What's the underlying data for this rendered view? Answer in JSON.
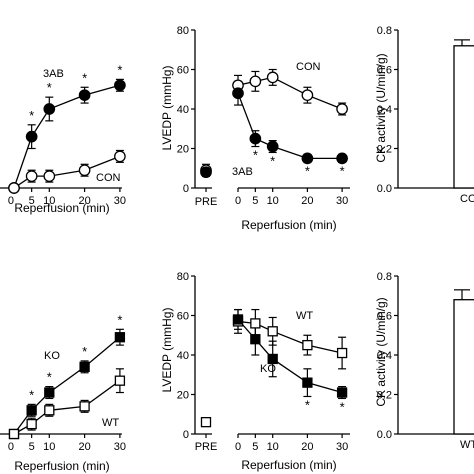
{
  "chart_data": [
    {
      "type": "line",
      "xlabel": "Reperfusion (min)",
      "ylabel": "",
      "x": [
        0,
        5,
        10,
        20,
        30
      ],
      "xticks": [
        "0",
        "5",
        "10",
        "20",
        "30"
      ],
      "ylim": [
        0,
        80
      ],
      "yticks": [],
      "series": [
        {
          "name": "3AB",
          "marker": "filled-circle",
          "values": [
            0,
            26,
            40,
            47,
            52
          ],
          "err": [
            0,
            6,
            6,
            4,
            3
          ]
        },
        {
          "name": "CON",
          "marker": "open-circle",
          "values": [
            0,
            6,
            6,
            9,
            16
          ],
          "err": [
            0,
            3,
            3,
            3,
            3
          ]
        }
      ],
      "significance": {
        "series": "3AB",
        "x": [
          5,
          10,
          20,
          30
        ],
        "mark": "*"
      }
    },
    {
      "type": "line",
      "xlabel": "Reperfusion (min)",
      "ylabel": "LVEDP (mmHg)",
      "x": [
        0,
        5,
        10,
        20,
        30
      ],
      "xticks": [
        "0",
        "5",
        "10",
        "20",
        "30"
      ],
      "pre_label": "PRE",
      "ylim": [
        0,
        80
      ],
      "yticks": [
        "0",
        "20",
        "40",
        "60",
        "80"
      ],
      "series": [
        {
          "name": "CON",
          "marker": "open-circle",
          "pre": 9,
          "pre_err": 3,
          "values": [
            52,
            54,
            56,
            47,
            40
          ],
          "err": [
            5,
            5,
            4,
            4,
            3
          ]
        },
        {
          "name": "3AB",
          "marker": "filled-circle",
          "pre": 8,
          "pre_err": 2,
          "values": [
            48,
            25,
            21,
            15,
            15
          ],
          "err": [
            6,
            4,
            3,
            2,
            2
          ]
        }
      ],
      "significance": {
        "series": "3AB",
        "x": [
          5,
          10,
          20,
          30
        ],
        "mark": "*"
      }
    },
    {
      "type": "bar",
      "xlabel": "",
      "ylabel": "CK activity (U/min/g)",
      "categories": [
        "CON"
      ],
      "values": [
        0.72
      ],
      "err": [
        0.03
      ],
      "ylim": [
        0,
        0.8
      ],
      "yticks": [
        "0.0",
        "0.2",
        "0.4",
        "0.6",
        "0.8"
      ]
    },
    {
      "type": "line",
      "xlabel": "Reperfusion (min)",
      "ylabel": "",
      "x": [
        0,
        5,
        10,
        20,
        30
      ],
      "xticks": [
        "0",
        "5",
        "10",
        "20",
        "30"
      ],
      "ylim": [
        0,
        80
      ],
      "yticks": [],
      "series": [
        {
          "name": "KO",
          "marker": "filled-square",
          "values": [
            0,
            12,
            21,
            34,
            49
          ],
          "err": [
            0,
            3,
            3,
            3,
            4
          ]
        },
        {
          "name": "WT",
          "marker": "open-square",
          "values": [
            0,
            5,
            12,
            14,
            27
          ],
          "err": [
            0,
            3,
            3,
            3,
            6
          ]
        }
      ],
      "significance": {
        "series": "KO",
        "x": [
          5,
          10,
          20,
          30
        ],
        "mark": "*"
      }
    },
    {
      "type": "line",
      "xlabel": "Reperfusion (min)",
      "ylabel": "LVEDP (mmHg)",
      "x": [
        0,
        5,
        10,
        20,
        30
      ],
      "xticks": [
        "0",
        "5",
        "10",
        "20",
        "30"
      ],
      "pre_label": "PRE",
      "ylim": [
        0,
        80
      ],
      "yticks": [
        "0",
        "20",
        "40",
        "60",
        "80"
      ],
      "series": [
        {
          "name": "WT",
          "marker": "open-square",
          "pre": 6,
          "pre_err": 0,
          "values": [
            57,
            56,
            52,
            45,
            41
          ],
          "err": [
            6,
            7,
            7,
            5,
            8
          ]
        },
        {
          "name": "KO",
          "marker": "filled-square",
          "pre": null,
          "pre_err": 0,
          "values": [
            58,
            48,
            38,
            26,
            21
          ],
          "err": [
            5,
            8,
            9,
            7,
            3
          ]
        }
      ],
      "significance": {
        "series": "KO",
        "x": [
          20,
          30
        ],
        "mark": "*"
      }
    },
    {
      "type": "bar",
      "xlabel": "",
      "ylabel": "CK activity (U/min/g)",
      "categories": [
        "WT"
      ],
      "values": [
        0.68
      ],
      "err": [
        0.05
      ],
      "ylim": [
        0,
        0.8
      ],
      "yticks": [
        "0.0",
        "0.2",
        "0.4",
        "0.6",
        "0.8"
      ]
    }
  ]
}
